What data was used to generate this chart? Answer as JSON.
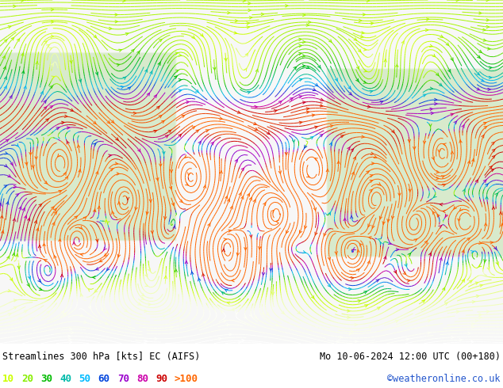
{
  "title_left": "Streamlines 300 hPa [kts] EC (AIFS)",
  "title_right": "Mo 10-06-2024 12:00 UTC (00+180)",
  "credit": "©weatheronline.co.uk",
  "legend_values": [
    "10",
    "20",
    "30",
    "40",
    "50",
    "60",
    "70",
    "80",
    "90",
    ">100"
  ],
  "legend_colors": [
    "#ccff00",
    "#88ee00",
    "#00bb00",
    "#00bbaa",
    "#00bbff",
    "#0044dd",
    "#9900cc",
    "#cc00aa",
    "#cc0000",
    "#ff6600"
  ],
  "bg_color": "#f8f8f4",
  "fig_width": 6.34,
  "fig_height": 4.9,
  "dpi": 100,
  "title_fontsize": 8.5,
  "legend_fontsize": 9,
  "bottom_bar_color": "#ffffff",
  "colormap_speeds": [
    0,
    10,
    20,
    30,
    40,
    50,
    60,
    70,
    80,
    90,
    110
  ],
  "colormap_colors": [
    "#ffffff",
    "#ccff00",
    "#88ee00",
    "#00bb00",
    "#00bbaa",
    "#00bbff",
    "#0044dd",
    "#9900cc",
    "#cc00aa",
    "#cc0000",
    "#ff6600"
  ]
}
